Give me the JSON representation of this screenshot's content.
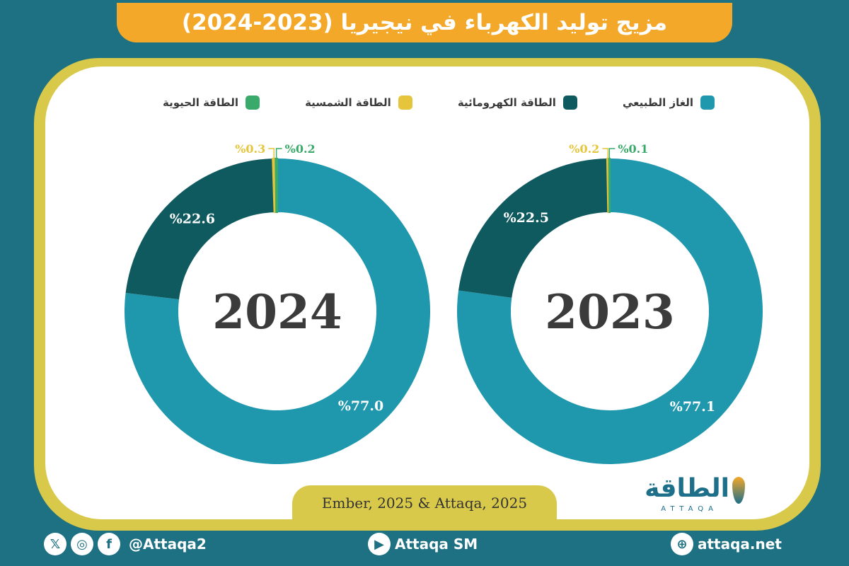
{
  "title": "مزيج توليد الكهرباء في نيجيريا (2023-2024)",
  "source": "Ember, 2025 & Attaqa, 2025",
  "logo": {
    "arabic": "الطاقة",
    "english": "ATTAQA"
  },
  "footer": {
    "social_handle": "@Attaqa2",
    "youtube": "Attaqa SM",
    "website": "attaqa.net",
    "icons": [
      "x-icon",
      "instagram-icon",
      "facebook-icon",
      "youtube-icon",
      "globe-icon"
    ]
  },
  "colors": {
    "natural_gas": "#1f97ad",
    "hydro": "#0f5a5f",
    "solar": "#e6c53d",
    "bio": "#3aaa6a",
    "title_bg": "#f4a82a",
    "frame": "#d9c94a",
    "background": "#1d7183"
  },
  "chart_data": {
    "type": "pie",
    "legend": [
      "الغاز الطبيعي",
      "الطاقة الكهرومائية",
      "الطاقة الشمسية",
      "الطاقة الحيوية"
    ],
    "charts": [
      {
        "year": "2023",
        "slices": [
          {
            "name": "الغاز الطبيعي",
            "value": 77.1,
            "label": "%77.1"
          },
          {
            "name": "الطاقة الكهرومائية",
            "value": 22.5,
            "label": "%22.5"
          },
          {
            "name": "الطاقة الشمسية",
            "value": 0.2,
            "label": "%0.2"
          },
          {
            "name": "الطاقة الحيوية",
            "value": 0.1,
            "label": "%0.1"
          }
        ]
      },
      {
        "year": "2024",
        "slices": [
          {
            "name": "الغاز الطبيعي",
            "value": 77.0,
            "label": "%77.0"
          },
          {
            "name": "الطاقة الكهرومائية",
            "value": 22.6,
            "label": "%22.6"
          },
          {
            "name": "الطاقة الشمسية",
            "value": 0.3,
            "label": "%0.3"
          },
          {
            "name": "الطاقة الحيوية",
            "value": 0.2,
            "label": "%0.2"
          }
        ]
      }
    ]
  }
}
